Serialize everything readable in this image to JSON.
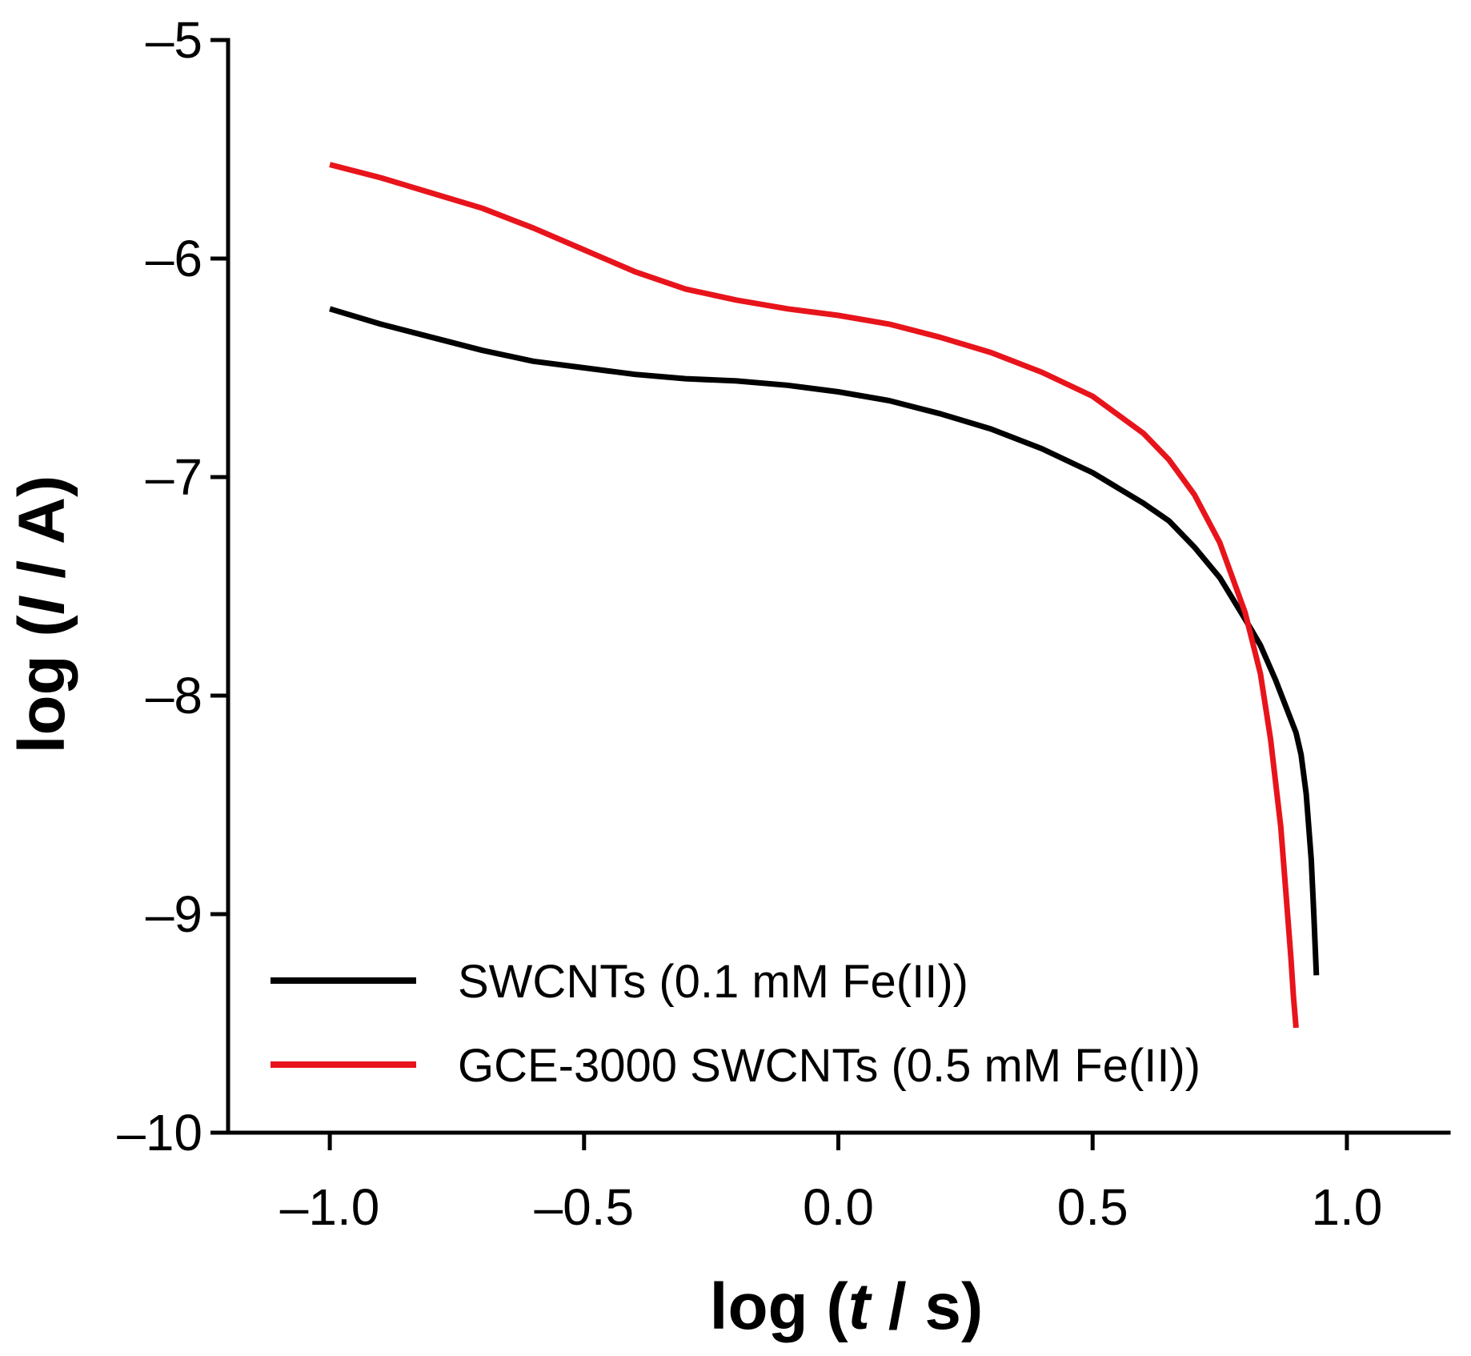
{
  "chart_data": {
    "type": "line",
    "title": "",
    "xlabel": {
      "prefix": "log (",
      "var": "t",
      "suffix": " / s)"
    },
    "ylabel": {
      "prefix": "log (",
      "var": "I",
      "suffix": " / A)"
    },
    "xlim": [
      -1.2,
      1.2
    ],
    "ylim": [
      -10,
      -5
    ],
    "x_ticks": [
      -1.0,
      -0.5,
      0.0,
      0.5,
      1.0
    ],
    "x_tick_labels": [
      "–1.0",
      "–0.5",
      "0.0",
      "0.5",
      "1.0"
    ],
    "y_ticks": [
      -10,
      -9,
      -8,
      -7,
      -6,
      -5
    ],
    "y_tick_labels": [
      "–10",
      "–9",
      "–8",
      "–7",
      "–6",
      "–5"
    ],
    "grid": false,
    "legend_position": "bottom-left",
    "series": [
      {
        "name": "SWCNTs (0.1 mM Fe(II))",
        "color": "#000000",
        "x": [
          -1.0,
          -0.9,
          -0.8,
          -0.7,
          -0.6,
          -0.5,
          -0.4,
          -0.3,
          -0.2,
          -0.1,
          0.0,
          0.1,
          0.2,
          0.3,
          0.4,
          0.5,
          0.6,
          0.65,
          0.7,
          0.75,
          0.8,
          0.83,
          0.86,
          0.88,
          0.9,
          0.91,
          0.92,
          0.93,
          0.935,
          0.94
        ],
        "y": [
          -6.23,
          -6.3,
          -6.36,
          -6.42,
          -6.47,
          -6.5,
          -6.53,
          -6.55,
          -6.56,
          -6.58,
          -6.61,
          -6.65,
          -6.71,
          -6.78,
          -6.87,
          -6.98,
          -7.12,
          -7.2,
          -7.32,
          -7.46,
          -7.65,
          -7.77,
          -7.93,
          -8.05,
          -8.17,
          -8.27,
          -8.45,
          -8.75,
          -9.0,
          -9.28
        ]
      },
      {
        "name": "GCE-3000 SWCNTs (0.5 mM Fe(II))",
        "color": "#e8141b",
        "x": [
          -1.0,
          -0.9,
          -0.8,
          -0.7,
          -0.6,
          -0.5,
          -0.4,
          -0.3,
          -0.2,
          -0.1,
          0.0,
          0.1,
          0.2,
          0.3,
          0.4,
          0.5,
          0.6,
          0.65,
          0.7,
          0.75,
          0.8,
          0.83,
          0.85,
          0.87,
          0.88,
          0.89,
          0.895,
          0.9
        ],
        "y": [
          -5.57,
          -5.63,
          -5.7,
          -5.77,
          -5.86,
          -5.96,
          -6.06,
          -6.14,
          -6.19,
          -6.23,
          -6.26,
          -6.3,
          -6.36,
          -6.43,
          -6.52,
          -6.63,
          -6.8,
          -6.92,
          -7.08,
          -7.3,
          -7.62,
          -7.9,
          -8.2,
          -8.6,
          -8.9,
          -9.2,
          -9.38,
          -9.52
        ]
      }
    ]
  }
}
